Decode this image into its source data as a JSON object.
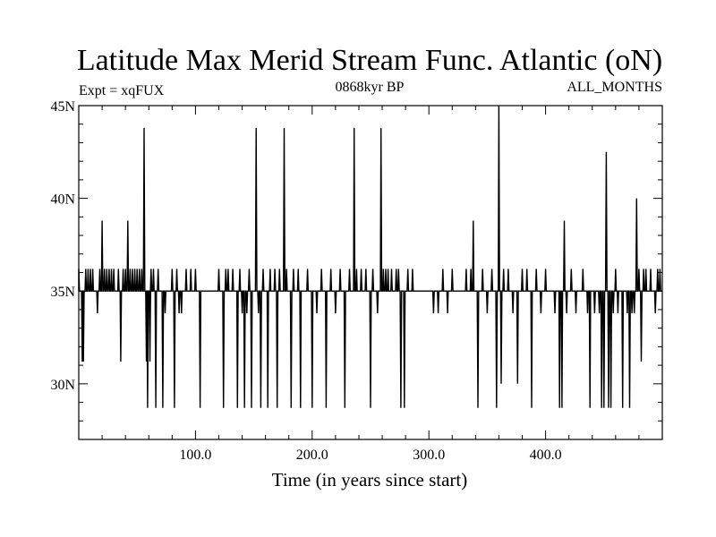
{
  "chart_data": {
    "type": "line",
    "title": "Latitude Max Merid Stream Func. Atlantic (oN)",
    "subtitle_left": "Expt = xqFUX",
    "subtitle_center": "0868kyr BP",
    "subtitle_right": "ALL_MONTHS",
    "xlabel": "Time (in years since start)",
    "ylabel": "",
    "xlim": [
      0,
      500
    ],
    "ylim": [
      27,
      45
    ],
    "x_ticks": [
      100,
      200,
      300,
      400
    ],
    "x_tick_labels": [
      "100.0",
      "200.0",
      "300.0",
      "400.0"
    ],
    "y_ticks": [
      30,
      35,
      40,
      45
    ],
    "y_tick_labels": [
      "30N",
      "35N",
      "40N",
      "45N"
    ],
    "grid": false,
    "line_color": "#000000",
    "baseline": 35,
    "events": [
      [
        0,
        36.2
      ],
      [
        3,
        31.2
      ],
      [
        4,
        31.2
      ],
      [
        6,
        36.2
      ],
      [
        8,
        36.2
      ],
      [
        10,
        36.2
      ],
      [
        12,
        36.2
      ],
      [
        16,
        33.8
      ],
      [
        18,
        36.2
      ],
      [
        20,
        38.8
      ],
      [
        22,
        36.2
      ],
      [
        24,
        36.2
      ],
      [
        26,
        36.2
      ],
      [
        28,
        36.2
      ],
      [
        30,
        36.2
      ],
      [
        34,
        36.2
      ],
      [
        36,
        31.2
      ],
      [
        38,
        36.2
      ],
      [
        40,
        36.2
      ],
      [
        42,
        38.8
      ],
      [
        44,
        36.2
      ],
      [
        46,
        36.2
      ],
      [
        48,
        36.2
      ],
      [
        50,
        36.2
      ],
      [
        52,
        36.2
      ],
      [
        54,
        36.2
      ],
      [
        56,
        43.8
      ],
      [
        58,
        31.2
      ],
      [
        59,
        28.7
      ],
      [
        61,
        31.2
      ],
      [
        62,
        36.2
      ],
      [
        64,
        36.2
      ],
      [
        66,
        28.7
      ],
      [
        68,
        36.2
      ],
      [
        72,
        28.7
      ],
      [
        74,
        33.8
      ],
      [
        80,
        36.2
      ],
      [
        82,
        28.7
      ],
      [
        84,
        36.2
      ],
      [
        86,
        33.8
      ],
      [
        88,
        33.8
      ],
      [
        92,
        36.2
      ],
      [
        96,
        36.2
      ],
      [
        100,
        36.2
      ],
      [
        104,
        28.7
      ],
      [
        120,
        36.2
      ],
      [
        124,
        28.7
      ],
      [
        126,
        36.2
      ],
      [
        128,
        36.2
      ],
      [
        132,
        36.2
      ],
      [
        136,
        28.7
      ],
      [
        138,
        36.2
      ],
      [
        140,
        33.8
      ],
      [
        142,
        28.7
      ],
      [
        144,
        33.8
      ],
      [
        146,
        36.2
      ],
      [
        148,
        28.7
      ],
      [
        152,
        43.8
      ],
      [
        154,
        33.8
      ],
      [
        156,
        28.7
      ],
      [
        158,
        36.2
      ],
      [
        162,
        28.7
      ],
      [
        164,
        36.2
      ],
      [
        168,
        36.2
      ],
      [
        170,
        28.7
      ],
      [
        172,
        36.2
      ],
      [
        176,
        43.8
      ],
      [
        178,
        36.2
      ],
      [
        182,
        28.7
      ],
      [
        184,
        36.2
      ],
      [
        188,
        36.2
      ],
      [
        190,
        28.7
      ],
      [
        196,
        36.2
      ],
      [
        200,
        28.7
      ],
      [
        204,
        33.8
      ],
      [
        208,
        36.2
      ],
      [
        212,
        28.7
      ],
      [
        216,
        36.2
      ],
      [
        220,
        33.8
      ],
      [
        224,
        36.2
      ],
      [
        228,
        28.7
      ],
      [
        232,
        36.2
      ],
      [
        236,
        43.8
      ],
      [
        238,
        36.2
      ],
      [
        242,
        36.2
      ],
      [
        246,
        36.2
      ],
      [
        250,
        28.7
      ],
      [
        252,
        36.2
      ],
      [
        256,
        33.8
      ],
      [
        259,
        43.8
      ],
      [
        261,
        36.2
      ],
      [
        263,
        36.2
      ],
      [
        265,
        36.2
      ],
      [
        268,
        36.2
      ],
      [
        272,
        36.2
      ],
      [
        274,
        36.2
      ],
      [
        276,
        28.7
      ],
      [
        279,
        28.7
      ],
      [
        282,
        36.2
      ],
      [
        286,
        36.2
      ],
      [
        304,
        33.8
      ],
      [
        308,
        33.8
      ],
      [
        312,
        36.2
      ],
      [
        316,
        33.8
      ],
      [
        320,
        36.2
      ],
      [
        332,
        36.2
      ],
      [
        336,
        36.2
      ],
      [
        338,
        38.8
      ],
      [
        342,
        28.7
      ],
      [
        346,
        36.2
      ],
      [
        350,
        33.8
      ],
      [
        354,
        36.2
      ],
      [
        358,
        28.7
      ],
      [
        360,
        45
      ],
      [
        362,
        30.0
      ],
      [
        364,
        36.2
      ],
      [
        368,
        36.2
      ],
      [
        372,
        33.8
      ],
      [
        376,
        30.0
      ],
      [
        380,
        36.2
      ],
      [
        384,
        36.2
      ],
      [
        388,
        28.7
      ],
      [
        392,
        36.2
      ],
      [
        396,
        33.8
      ],
      [
        400,
        36.2
      ],
      [
        408,
        33.8
      ],
      [
        412,
        28.7
      ],
      [
        414,
        28.7
      ],
      [
        416,
        38.8
      ],
      [
        418,
        33.8
      ],
      [
        422,
        36.2
      ],
      [
        426,
        33.8
      ],
      [
        432,
        36.2
      ],
      [
        436,
        33.8
      ],
      [
        438,
        28.7
      ],
      [
        442,
        33.8
      ],
      [
        446,
        33.8
      ],
      [
        448,
        28.7
      ],
      [
        450,
        28.7
      ],
      [
        452,
        42.5
      ],
      [
        454,
        28.7
      ],
      [
        456,
        28.7
      ],
      [
        458,
        33.8
      ],
      [
        460,
        36.2
      ],
      [
        462,
        33.8
      ],
      [
        466,
        28.7
      ],
      [
        470,
        33.8
      ],
      [
        472,
        28.7
      ],
      [
        474,
        33.8
      ],
      [
        476,
        33.8
      ],
      [
        478,
        40.0
      ],
      [
        480,
        36.2
      ],
      [
        482,
        31.2
      ],
      [
        484,
        36.2
      ],
      [
        486,
        36.2
      ],
      [
        490,
        36.2
      ],
      [
        494,
        33.8
      ],
      [
        496,
        36.2
      ],
      [
        498,
        36.2
      ]
    ]
  }
}
